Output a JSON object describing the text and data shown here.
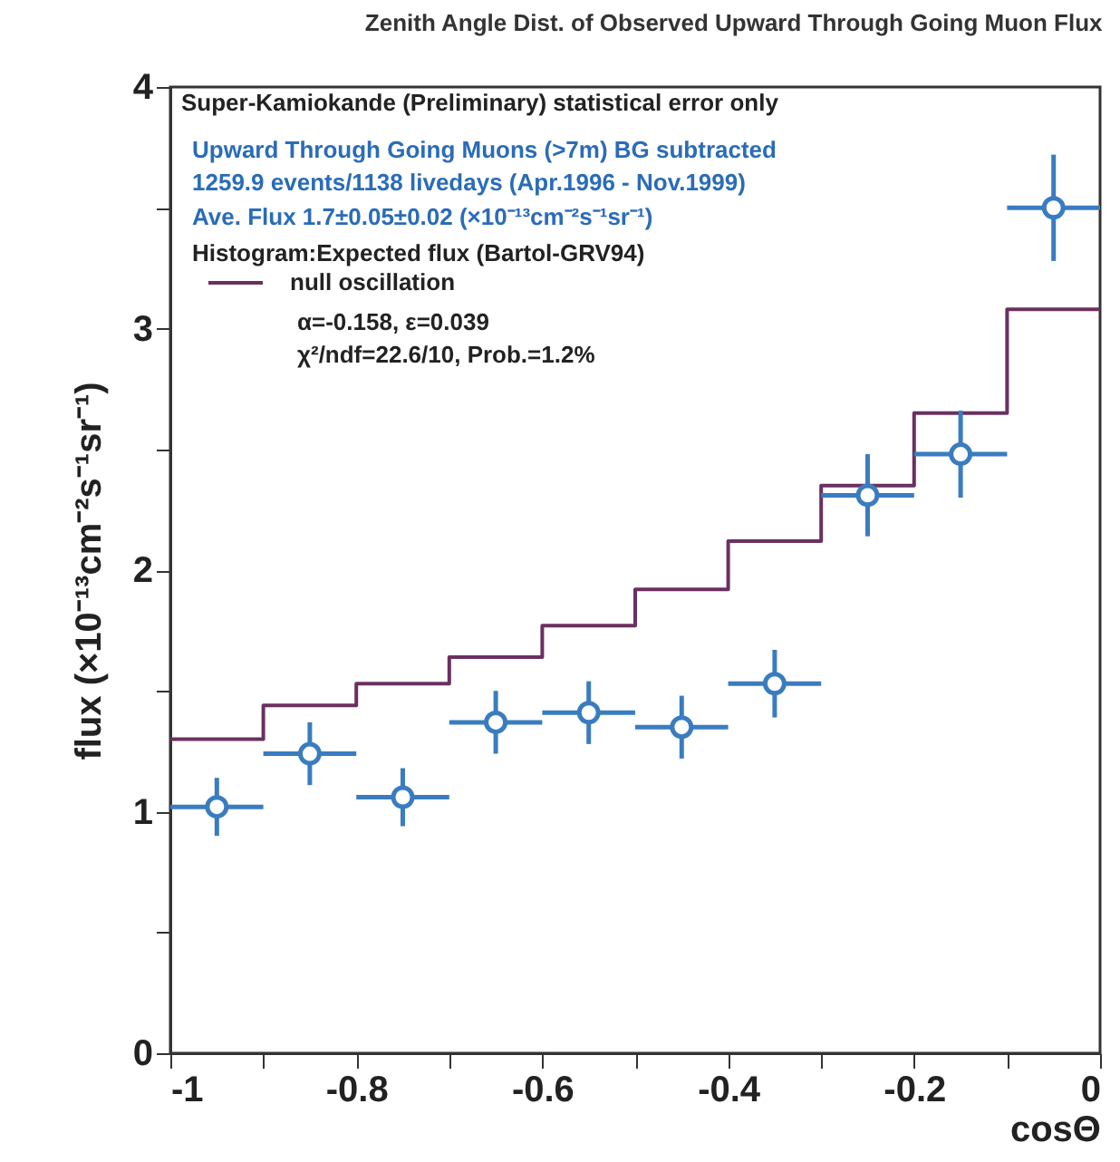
{
  "chart_data": {
    "type": "scatter",
    "title": "Zenith Angle Dist. of Observed Upward Through Going Muon Flux",
    "xlabel": "cosΘ",
    "ylabel": "flux (×10⁻¹³cm⁻²s⁻¹sr⁻¹)",
    "xlim": [
      -1,
      0
    ],
    "ylim": [
      0,
      4
    ],
    "xticks": [
      -1,
      {
        "value": -0.9,
        "label": null
      },
      -0.8,
      {
        "value": -0.7,
        "label": null
      },
      -0.6,
      {
        "value": -0.5,
        "label": null
      },
      -0.4,
      {
        "value": -0.3,
        "label": null
      },
      -0.2,
      {
        "value": -0.1,
        "label": null
      },
      0
    ],
    "yticks": [
      0,
      {
        "value": 0.5,
        "label": null
      },
      1,
      {
        "value": 1.5,
        "label": null
      },
      2,
      {
        "value": 2.5,
        "label": null
      },
      3,
      {
        "value": 3.5,
        "label": null
      },
      4
    ],
    "grid": false,
    "legend": "top left",
    "series": [
      {
        "type": "step",
        "name": "null oscillation",
        "color": "#6a3060",
        "x": [
          -1,
          -0.9,
          -0.8,
          -0.7,
          -0.6,
          -0.5,
          -0.4,
          -0.3,
          -0.2,
          -0.1,
          0
        ],
        "values": [
          1.3,
          1.44,
          1.53,
          1.64,
          1.77,
          1.92,
          2.12,
          2.35,
          2.65,
          3.08,
          3.08
        ]
      },
      {
        "marker": "circle",
        "color": "#3a7cc0",
        "x": [
          -0.95,
          -0.85,
          -0.75,
          -0.65,
          -0.55,
          -0.45,
          -0.35,
          -0.25,
          -0.15,
          -0.05
        ],
        "values": [
          1.02,
          1.24,
          1.06,
          1.37,
          1.41,
          1.35,
          1.53,
          2.31,
          2.48,
          3.5
        ],
        "errors": [
          0.12,
          0.13,
          0.12,
          0.13,
          0.13,
          0.13,
          0.14,
          0.17,
          0.18,
          0.22
        ],
        "xerrors": [
          0.05,
          0.05,
          0.05,
          0.05,
          0.05,
          0.05,
          0.05,
          0.05,
          0.05,
          0.05
        ]
      }
    ],
    "annotations": [
      "Super-Kamiokande (Preliminary)  statistical error only",
      "Upward Through Going Muons (>7m) BG subtracted",
      "1259.9 events/1138 livedays (Apr.1996 - Nov.1999)",
      "Ave. Flux  1.7±0.05±0.02 (×10⁻¹³cm⁻²s⁻¹sr⁻¹)",
      "Histogram:Expected flux (Bartol-GRV94)",
      "α=-0.158, ε=0.039",
      "χ²/ndf=22.6/10, Prob.=1.2%"
    ]
  }
}
